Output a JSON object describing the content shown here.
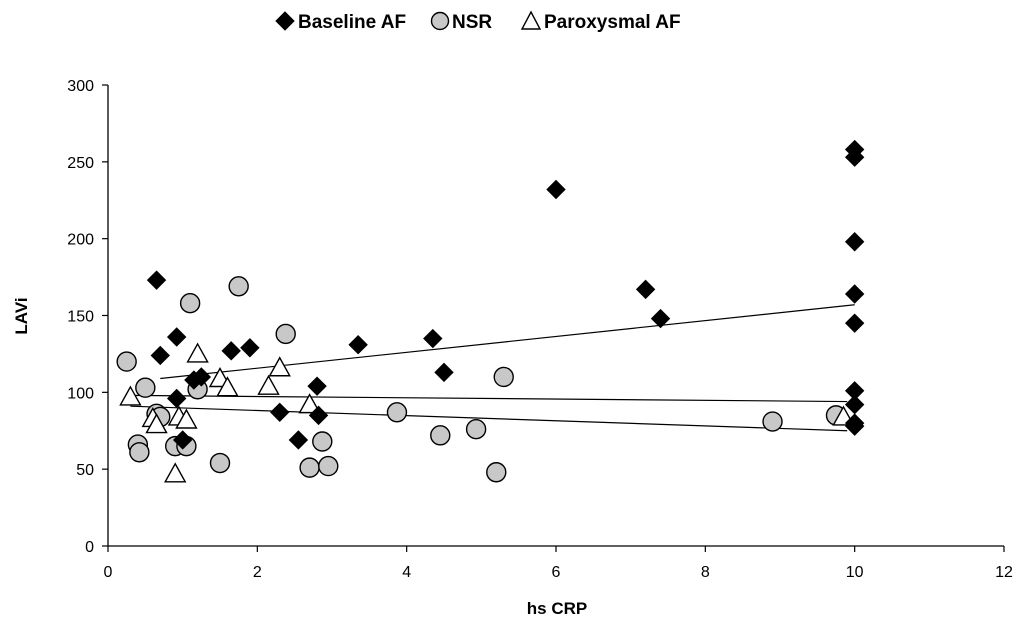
{
  "chart_data": {
    "type": "scatter",
    "xlabel": "hs CRP",
    "ylabel": "LAVi",
    "xlim": [
      0,
      12
    ],
    "ylim": [
      0,
      300
    ],
    "x_ticks": [
      0,
      2,
      4,
      6,
      8,
      10,
      12
    ],
    "y_ticks": [
      0,
      50,
      100,
      150,
      200,
      250,
      300
    ],
    "grid": false,
    "legend_position": "top",
    "series": [
      {
        "name": "Baseline AF",
        "marker": "diamond",
        "color": "#000000",
        "points": [
          [
            0.65,
            173
          ],
          [
            0.7,
            124
          ],
          [
            0.92,
            136
          ],
          [
            1.15,
            108
          ],
          [
            1.25,
            110
          ],
          [
            1.65,
            127
          ],
          [
            1.9,
            129
          ],
          [
            1.0,
            69
          ],
          [
            0.92,
            96
          ],
          [
            2.3,
            87
          ],
          [
            2.55,
            69
          ],
          [
            2.8,
            104
          ],
          [
            2.82,
            85
          ],
          [
            3.35,
            131
          ],
          [
            4.35,
            135
          ],
          [
            4.5,
            113
          ],
          [
            6.0,
            232
          ],
          [
            7.2,
            167
          ],
          [
            7.4,
            148
          ],
          [
            10.0,
            258
          ],
          [
            10.0,
            253
          ],
          [
            10.0,
            198
          ],
          [
            10.0,
            164
          ],
          [
            10.0,
            145
          ],
          [
            10.0,
            101
          ],
          [
            10.0,
            92
          ],
          [
            10.0,
            80
          ],
          [
            10.0,
            78
          ]
        ]
      },
      {
        "name": "NSR",
        "marker": "circle",
        "color": "#c8c8c8",
        "points": [
          [
            0.25,
            120
          ],
          [
            0.4,
            66
          ],
          [
            0.42,
            61
          ],
          [
            0.5,
            103
          ],
          [
            0.65,
            86
          ],
          [
            0.7,
            84
          ],
          [
            0.9,
            65
          ],
          [
            1.05,
            65
          ],
          [
            1.1,
            158
          ],
          [
            1.2,
            102
          ],
          [
            1.5,
            54
          ],
          [
            1.75,
            169
          ],
          [
            2.38,
            138
          ],
          [
            2.7,
            51
          ],
          [
            2.87,
            68
          ],
          [
            2.95,
            52
          ],
          [
            3.87,
            87
          ],
          [
            4.45,
            72
          ],
          [
            4.93,
            76
          ],
          [
            5.2,
            48
          ],
          [
            5.3,
            110
          ],
          [
            8.9,
            81
          ],
          [
            9.75,
            85
          ]
        ]
      },
      {
        "name": "Paroxysmal AF",
        "marker": "triangle",
        "color": "#ffffff",
        "points": [
          [
            0.3,
            97
          ],
          [
            0.6,
            83
          ],
          [
            0.65,
            79
          ],
          [
            0.9,
            47
          ],
          [
            0.95,
            84
          ],
          [
            1.05,
            82
          ],
          [
            1.2,
            125
          ],
          [
            1.5,
            109
          ],
          [
            1.6,
            103
          ],
          [
            2.15,
            104
          ],
          [
            2.3,
            116
          ],
          [
            2.7,
            92
          ],
          [
            9.85,
            84
          ]
        ]
      }
    ],
    "trendlines": [
      {
        "series": "Baseline AF",
        "x": [
          0.7,
          10.0
        ],
        "y": [
          109,
          157
        ]
      },
      {
        "series": "NSR",
        "x": [
          0.3,
          9.9
        ],
        "y": [
          98,
          94
        ]
      },
      {
        "series": "Paroxysmal AF",
        "x": [
          0.3,
          9.9
        ],
        "y": [
          91,
          75
        ]
      }
    ]
  }
}
